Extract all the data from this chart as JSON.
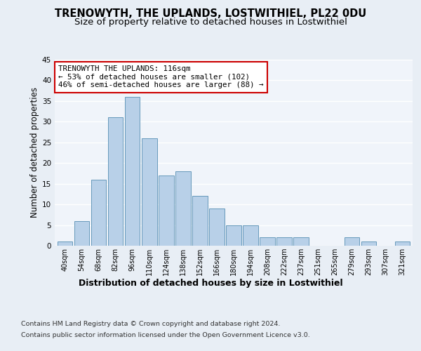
{
  "title": "TRENOWYTH, THE UPLANDS, LOSTWITHIEL, PL22 0DU",
  "subtitle": "Size of property relative to detached houses in Lostwithiel",
  "xlabel": "Distribution of detached houses by size in Lostwithiel",
  "ylabel": "Number of detached properties",
  "categories": [
    "40sqm",
    "54sqm",
    "68sqm",
    "82sqm",
    "96sqm",
    "110sqm",
    "124sqm",
    "138sqm",
    "152sqm",
    "166sqm",
    "180sqm",
    "194sqm",
    "208sqm",
    "222sqm",
    "237sqm",
    "251sqm",
    "265sqm",
    "279sqm",
    "293sqm",
    "307sqm",
    "321sqm"
  ],
  "values": [
    1,
    6,
    16,
    31,
    36,
    26,
    17,
    18,
    12,
    9,
    5,
    5,
    2,
    2,
    2,
    0,
    0,
    2,
    1,
    0,
    1
  ],
  "bar_color": "#b8d0e8",
  "bar_edge_color": "#6699bb",
  "annotation_text": "TRENOWYTH THE UPLANDS: 116sqm\n← 53% of detached houses are smaller (102)\n46% of semi-detached houses are larger (88) →",
  "annotation_box_color": "#ffffff",
  "annotation_box_edge_color": "#cc0000",
  "ylim": [
    0,
    45
  ],
  "yticks": [
    0,
    5,
    10,
    15,
    20,
    25,
    30,
    35,
    40,
    45
  ],
  "footer_line1": "Contains HM Land Registry data © Crown copyright and database right 2024.",
  "footer_line2": "Contains public sector information licensed under the Open Government Licence v3.0.",
  "bg_color": "#e8eef5",
  "plot_bg_color": "#f0f4fa",
  "grid_color": "#ffffff",
  "title_fontsize": 10.5,
  "subtitle_fontsize": 9.5,
  "tick_fontsize": 7,
  "ylabel_fontsize": 8.5
}
